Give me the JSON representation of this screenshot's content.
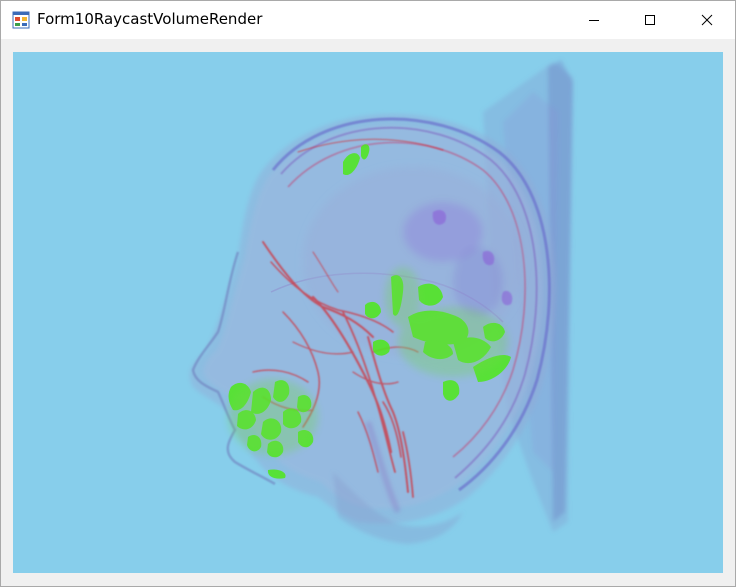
{
  "window": {
    "title": "Form10RaycastVolumeRender",
    "icon": "windows-form-icon",
    "controls": [
      "minimize-icon",
      "maximize-icon",
      "close-icon"
    ]
  },
  "render_panel": {
    "background": "#87ceeb",
    "content": "volume-render-head"
  },
  "colors": {
    "background": "#87ceeb",
    "vessel": "#d0303a",
    "highlight": "#4ee81a",
    "soft_tissue": "#7f8fc8",
    "violet": "#8a5ad8"
  }
}
